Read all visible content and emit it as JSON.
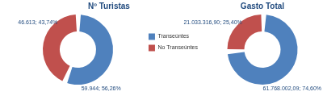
{
  "chart_data": [
    {
      "type": "doughnut",
      "title": "Nº Turistas",
      "categories": [
        "Transeúntes",
        "No Transeúntes"
      ],
      "values": [
        59944,
        46613
      ],
      "value_labels": [
        "59.944; 56,26%",
        "46.613; 43,74%"
      ],
      "colors": [
        "#4f81bd",
        "#c0504d"
      ],
      "data_labels": true,
      "legend": "right"
    },
    {
      "type": "doughnut",
      "title": "Gasto Total",
      "categories": [
        "Transeúntes",
        "No Transeúntes"
      ],
      "values": [
        61768002.09,
        21033316.9
      ],
      "value_labels": [
        "61.768.002,09; 74,60%",
        "21.033.316,90; 25,40%"
      ],
      "colors": [
        "#4f81bd",
        "#c0504d"
      ],
      "data_labels": true
    }
  ]
}
